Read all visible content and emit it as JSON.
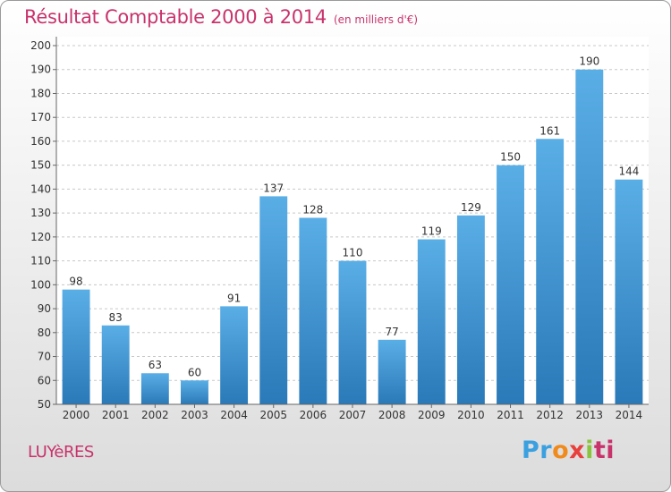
{
  "header": {
    "title": "Résultat Comptable 2000 à 2014",
    "unit": "(en milliers d'€)"
  },
  "footer": {
    "town": "LUYèRES",
    "brand": "Proxiti",
    "brand_parts": [
      "Pr",
      "o",
      "x",
      "i",
      "ti"
    ]
  },
  "chart_data": {
    "type": "bar",
    "title": "Résultat Comptable 2000 à 2014",
    "subtitle": "(en milliers d'€)",
    "categories": [
      "2000",
      "2001",
      "2002",
      "2003",
      "2004",
      "2005",
      "2006",
      "2007",
      "2008",
      "2009",
      "2010",
      "2011",
      "2012",
      "2013",
      "2014"
    ],
    "values": [
      98,
      83,
      63,
      60,
      91,
      137,
      128,
      110,
      77,
      119,
      129,
      150,
      161,
      190,
      144
    ],
    "ylim": [
      50,
      200
    ],
    "yticks": [
      50,
      60,
      70,
      80,
      90,
      100,
      110,
      120,
      130,
      140,
      150,
      160,
      170,
      180,
      190,
      200
    ],
    "grid": true,
    "bar_color_top": "#5aaee6",
    "bar_color_bottom": "#2a79b8",
    "title_color": "#c8336b"
  }
}
